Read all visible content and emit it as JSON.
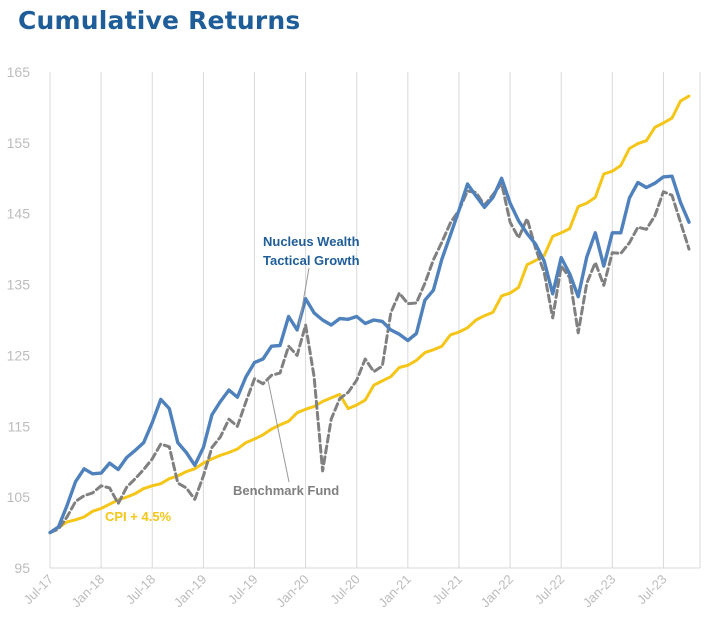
{
  "title": "Cumulative Returns",
  "chart_data": {
    "type": "line",
    "title": "Cumulative Returns",
    "xlabel": "",
    "ylabel": "",
    "ylim": [
      95,
      165
    ],
    "yticks": [
      95,
      105,
      115,
      125,
      135,
      145,
      155,
      165
    ],
    "x_tick_labels": [
      "Jul-17",
      "Jan-18",
      "Jul-18",
      "Jan-19",
      "Jul-19",
      "Jan-20",
      "Jul-20",
      "Jan-21",
      "Jul-21",
      "Jan-22",
      "Jul-22",
      "Jan-23",
      "Jul-23"
    ],
    "x_start": "Jul-17",
    "x_end": "Dec-23",
    "grid": "vertical",
    "legend": "none",
    "series": [
      {
        "name": "Nucleus Wealth Tactical Growth",
        "color": "#4f81bd",
        "style": "solid",
        "values": [
          100,
          100.8,
          103.8,
          107.2,
          109,
          108.3,
          108.4,
          109.8,
          108.9,
          110.6,
          111.6,
          112.7,
          115.5,
          118.8,
          117.5,
          112.7,
          111.3,
          109.5,
          112,
          116.6,
          118.5,
          120.1,
          119.1,
          122,
          124,
          124.5,
          126.3,
          126.4,
          130.5,
          128.6,
          133,
          131,
          130,
          129.3,
          130.2,
          130.1,
          130.5,
          129.5,
          130,
          129.8,
          128.6,
          128,
          127.1,
          128.1,
          132.8,
          134.2,
          138.6,
          142,
          145.5,
          149.2,
          147.5,
          145.9,
          147.3,
          150,
          146.5,
          144,
          142.2,
          140.7,
          138.3,
          133.7,
          138.8,
          136.5,
          133.3,
          138.9,
          142.3,
          137.6,
          142.3,
          142.3,
          147.2,
          149.4,
          148.7,
          149.3,
          150.2,
          150.3,
          146.6,
          143.8
        ]
      },
      {
        "name": "Benchmark Fund",
        "color": "#808080",
        "style": "dashed",
        "values": [
          100,
          100.5,
          102.2,
          104.4,
          105.2,
          105.6,
          106.6,
          106.3,
          104.1,
          106.4,
          107.6,
          108.9,
          110.4,
          112.5,
          112.1,
          107,
          106.3,
          104.7,
          108,
          112,
          113.5,
          116,
          115,
          118.5,
          121.7,
          121,
          122.2,
          122.5,
          126.3,
          125,
          129.3,
          122,
          108.7,
          116,
          118.9,
          119.8,
          121.5,
          124.5,
          122.7,
          123.5,
          131,
          133.8,
          132.3,
          132.4,
          135.2,
          138.5,
          141,
          143.7,
          145.5,
          148.2,
          148,
          146.2,
          147.7,
          149.3,
          143.8,
          141.6,
          144.3,
          140.1,
          136.7,
          130.3,
          137.6,
          136,
          128.2,
          135.2,
          138.1,
          134.9,
          139.5,
          139.4,
          140.9,
          143.1,
          142.8,
          144.7,
          148.1,
          147.6,
          143.8,
          140
        ]
      },
      {
        "name": "CPI + 4.5%",
        "color": "#f5c518",
        "style": "solid",
        "values": [
          100,
          100.7,
          101.5,
          101.8,
          102.2,
          103,
          103.4,
          104,
          104.6,
          105,
          105.5,
          106.2,
          106.6,
          106.9,
          107.6,
          108,
          108.6,
          109,
          109.8,
          110.4,
          110.9,
          111.3,
          111.8,
          112.7,
          113.2,
          113.8,
          114.6,
          115.2,
          115.7,
          116.9,
          117.4,
          117.8,
          118.5,
          119,
          119.5,
          117.5,
          118,
          118.7,
          120.8,
          121.4,
          122,
          123.3,
          123.6,
          124.3,
          125.4,
          125.8,
          126.3,
          127.9,
          128.3,
          128.9,
          130,
          130.6,
          131.1,
          133.4,
          133.8,
          134.6,
          137.8,
          138.4,
          139.1,
          141.8,
          142.3,
          142.9,
          146,
          146.5,
          147.3,
          150.6,
          151,
          151.8,
          154.2,
          154.9,
          155.3,
          157.2,
          157.8,
          158.5,
          160.9,
          161.6
        ]
      }
    ],
    "annotations": {
      "nucleus_line1": "Nucleus Wealth",
      "nucleus_line2": "Tactical Growth",
      "benchmark": "Benchmark Fund",
      "cpi": "CPI + 4.5%"
    }
  }
}
